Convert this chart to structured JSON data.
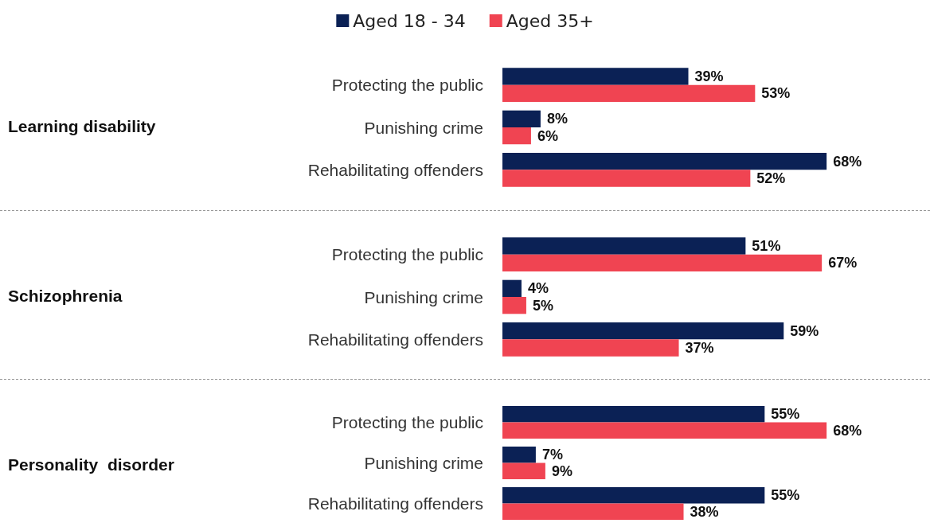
{
  "chart_data": [
    {
      "type": "bar",
      "orientation": "horizontal",
      "ylabel": "Learning disability",
      "legend": "top",
      "categories": [
        "Protecting the public",
        "Punishing crime",
        "Rehabilitating offenders"
      ],
      "series": [
        {
          "name": "Aged 18 - 34",
          "color": "#0b2155",
          "values": [
            39,
            8,
            68
          ],
          "value_labels": [
            "39%",
            "8%",
            "68%"
          ]
        },
        {
          "name": "Aged 35+",
          "color": "#f04452",
          "values": [
            53,
            6,
            52
          ],
          "value_labels": [
            "53%",
            "6%",
            "52%"
          ]
        }
      ]
    },
    {
      "type": "bar",
      "orientation": "horizontal",
      "ylabel": "Schizophrenia",
      "categories": [
        "Protecting the public",
        "Punishing crime",
        "Rehabilitating offenders"
      ],
      "series": [
        {
          "color": "#0b2155",
          "values": [
            51,
            4,
            59
          ],
          "value_labels": [
            "51%",
            "4%",
            "59%"
          ]
        },
        {
          "color": "#f04452",
          "values": [
            67,
            5,
            37
          ],
          "value_labels": [
            "67%",
            "5%",
            "37%"
          ]
        }
      ]
    },
    {
      "type": "bar",
      "orientation": "horizontal",
      "ylabel": "Personality  disorder",
      "categories": [
        "Protecting the public",
        "Punishing crime",
        "Rehabilitating offenders"
      ],
      "series": [
        {
          "color": "#0b2155",
          "values": [
            55,
            7,
            55
          ],
          "value_labels": [
            "55%",
            "7%",
            "55%"
          ]
        },
        {
          "color": "#f04452",
          "values": [
            68,
            9,
            38
          ],
          "value_labels": [
            "68%",
            "9%",
            "38%"
          ]
        }
      ]
    }
  ]
}
